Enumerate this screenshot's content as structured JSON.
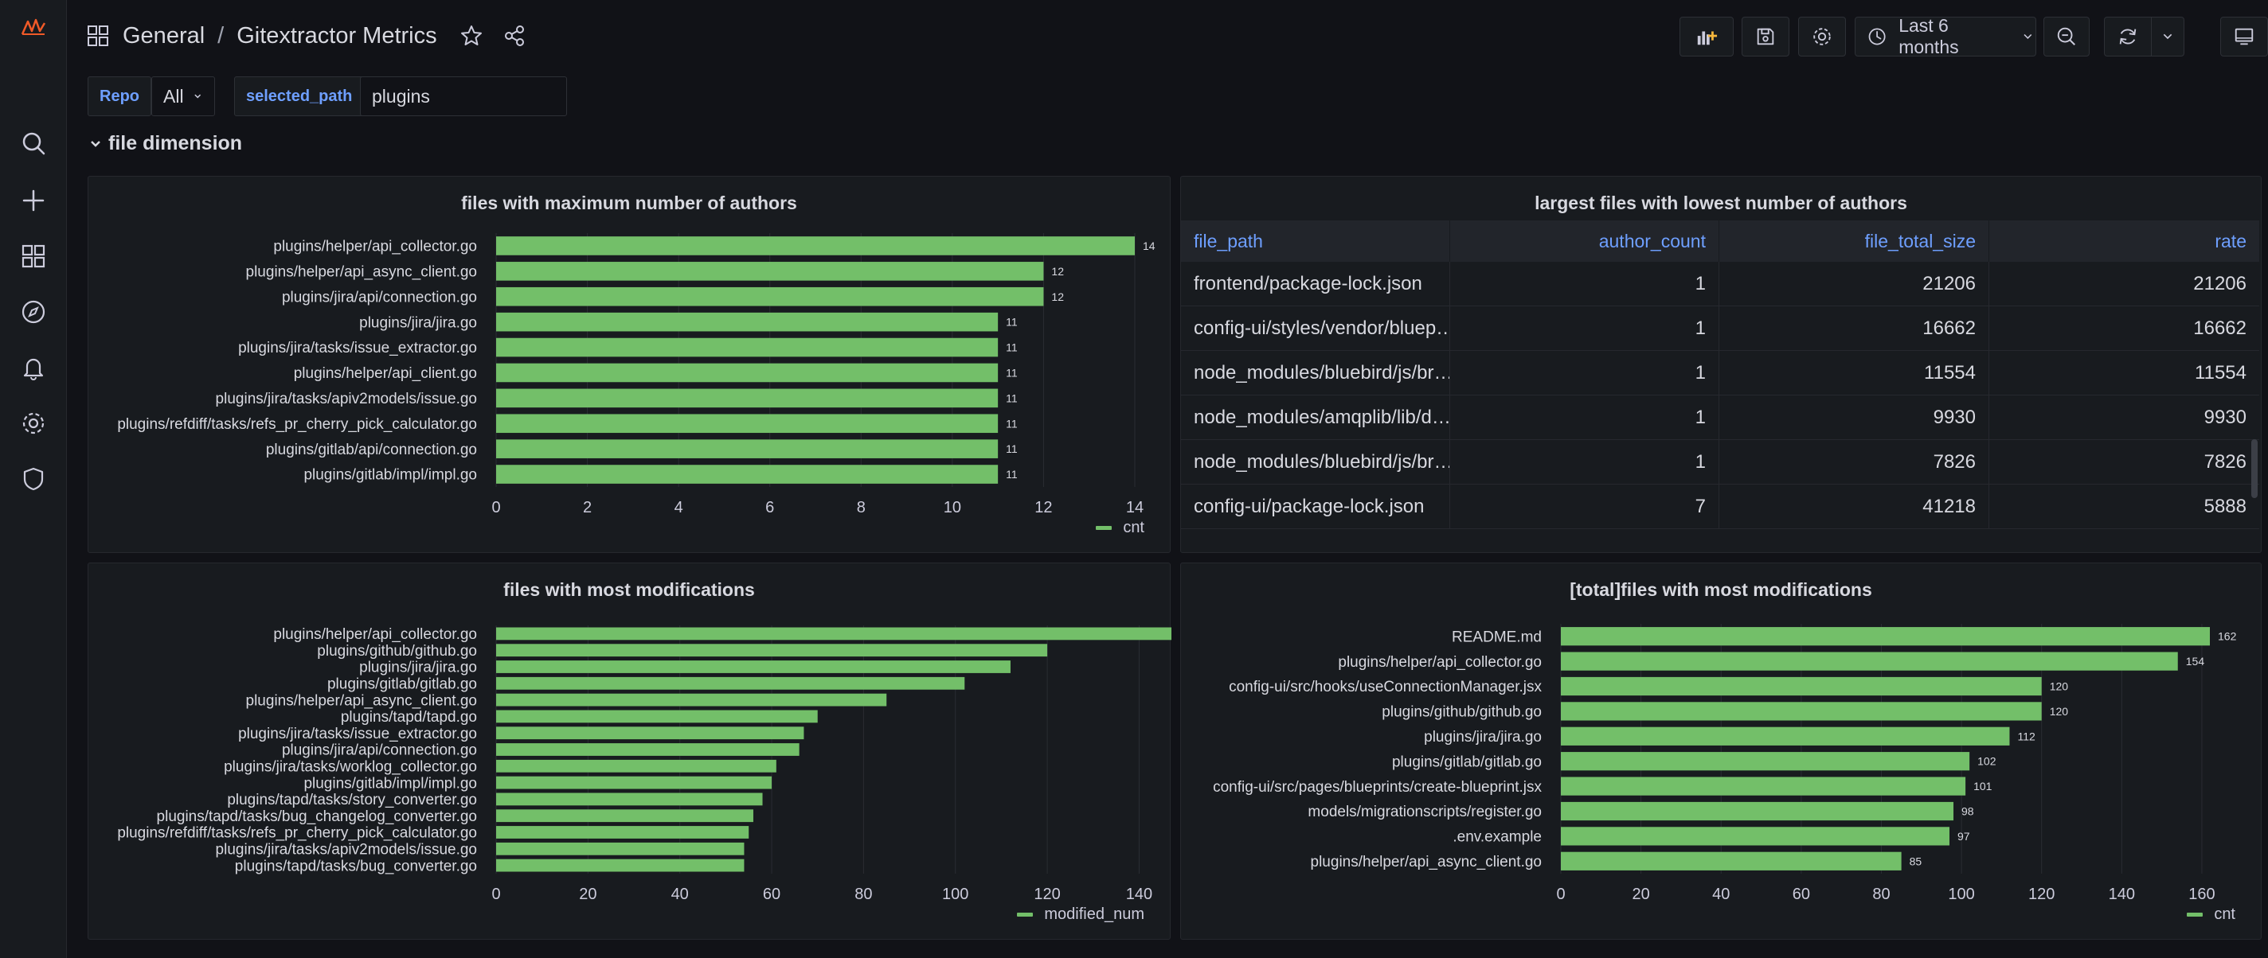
{
  "nav": {
    "brand": "grafana-logo-icon",
    "items": [
      "search-icon",
      "plus-icon",
      "dashboards-icon",
      "explore-icon",
      "alerting-icon",
      "settings-icon",
      "shield-icon"
    ]
  },
  "header": {
    "folder": "General",
    "separator": "/",
    "title": "Gitextractor Metrics",
    "time_range": "Last 6 months"
  },
  "variables": [
    {
      "label": "Repo",
      "value": "All"
    },
    {
      "label": "selected_path",
      "value": "plugins"
    }
  ],
  "row": {
    "title": "file dimension"
  },
  "colors": {
    "bar": "#73bf69",
    "accent": "#6e9fff",
    "background": "#111217",
    "panel": "#181b1f"
  },
  "panels": {
    "authors": {
      "title": "files with maximum number of authors",
      "legend": "cnt"
    },
    "largest": {
      "title": "largest files with lowest number of authors"
    },
    "mods": {
      "title": "files with most modifications",
      "legend": "modified_num"
    },
    "total": {
      "title": "[total]files with most modifications",
      "legend": "cnt"
    }
  },
  "table": {
    "columns": [
      "file_path",
      "author_count",
      "file_total_size",
      "rate"
    ],
    "rows": [
      [
        "frontend/package-lock.json",
        "1",
        "21206",
        "21206"
      ],
      [
        "config-ui/styles/vendor/bluep…",
        "1",
        "16662",
        "16662"
      ],
      [
        "node_modules/bluebird/js/br…",
        "1",
        "11554",
        "11554"
      ],
      [
        "node_modules/amqplib/lib/d…",
        "1",
        "9930",
        "9930"
      ],
      [
        "node_modules/bluebird/js/br…",
        "1",
        "7826",
        "7826"
      ],
      [
        "config-ui/package-lock.json",
        "7",
        "41218",
        "5888"
      ]
    ]
  },
  "chart_data": [
    {
      "type": "bar",
      "orientation": "horizontal",
      "title": "files with maximum number of authors",
      "categories": [
        "plugins/helper/api_collector.go",
        "plugins/helper/api_async_client.go",
        "plugins/jira/api/connection.go",
        "plugins/jira/jira.go",
        "plugins/jira/tasks/issue_extractor.go",
        "plugins/helper/api_client.go",
        "plugins/jira/tasks/apiv2models/issue.go",
        "plugins/refdiff/tasks/refs_pr_cherry_pick_calculator.go",
        "plugins/gitlab/api/connection.go",
        "plugins/gitlab/impl/impl.go"
      ],
      "series": [
        {
          "name": "cnt",
          "values": [
            14,
            12,
            12,
            11,
            11,
            11,
            11,
            11,
            11,
            11
          ]
        }
      ],
      "value_labels": true,
      "xlim": [
        0,
        14
      ],
      "xticks": [
        0,
        2,
        4,
        6,
        8,
        10,
        12,
        14
      ],
      "grid": true,
      "legend": "bottom-right"
    },
    {
      "type": "bar",
      "orientation": "horizontal",
      "title": "files with most modifications",
      "categories": [
        "plugins/helper/api_collector.go",
        "plugins/github/github.go",
        "plugins/jira/jira.go",
        "plugins/gitlab/gitlab.go",
        "plugins/helper/api_async_client.go",
        "plugins/tapd/tapd.go",
        "plugins/jira/tasks/issue_extractor.go",
        "plugins/jira/api/connection.go",
        "plugins/jira/tasks/worklog_collector.go",
        "plugins/gitlab/impl/impl.go",
        "plugins/tapd/tasks/story_converter.go",
        "plugins/tapd/tasks/bug_changelog_converter.go",
        "plugins/refdiff/tasks/refs_pr_cherry_pick_calculator.go",
        "plugins/jira/tasks/apiv2models/issue.go",
        "plugins/tapd/tasks/bug_converter.go"
      ],
      "series": [
        {
          "name": "modified_num",
          "values": [
            154,
            120,
            112,
            102,
            85,
            70,
            67,
            66,
            61,
            60,
            58,
            56,
            55,
            54,
            54
          ]
        }
      ],
      "value_labels": false,
      "xlim": [
        0,
        172
      ],
      "xticks": [
        0,
        20,
        40,
        60,
        80,
        100,
        120,
        140,
        160
      ],
      "grid": true,
      "legend": "bottom-right"
    },
    {
      "type": "bar",
      "orientation": "horizontal",
      "title": "[total]files with most modifications",
      "categories": [
        "README.md",
        "plugins/helper/api_collector.go",
        "config-ui/src/hooks/useConnectionManager.jsx",
        "plugins/github/github.go",
        "plugins/jira/jira.go",
        "plugins/gitlab/gitlab.go",
        "config-ui/src/pages/blueprints/create-blueprint.jsx",
        "models/migrationscripts/register.go",
        ".env.example",
        "plugins/helper/api_async_client.go"
      ],
      "series": [
        {
          "name": "cnt",
          "values": [
            162,
            154,
            120,
            120,
            112,
            102,
            101,
            98,
            97,
            85
          ]
        }
      ],
      "value_labels": true,
      "xlim": [
        0,
        162
      ],
      "xticks": [
        0,
        20,
        40,
        60,
        80,
        100,
        120,
        140,
        160
      ],
      "grid": true,
      "legend": "bottom-right"
    }
  ]
}
